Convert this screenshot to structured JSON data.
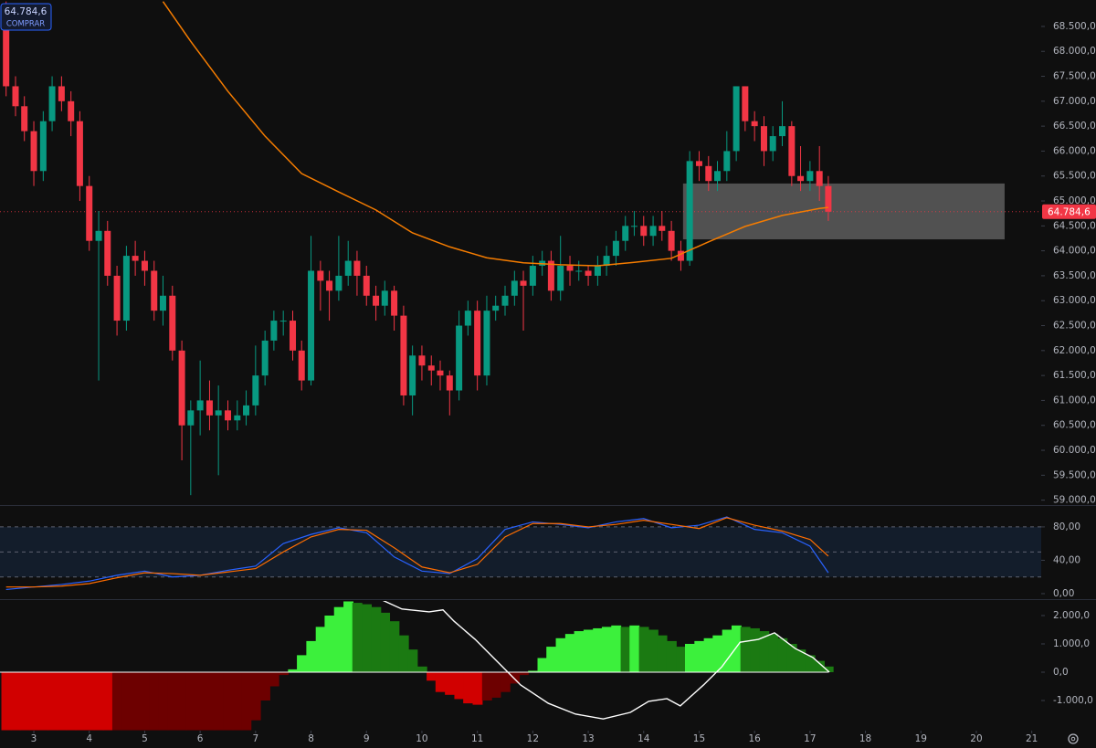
{
  "chart_data": [
    {
      "type": "candlestick",
      "x": [
        2.5,
        2.67,
        2.83,
        3,
        3.17,
        3.33,
        3.5,
        3.67,
        3.83,
        4,
        4.17,
        4.33,
        4.5,
        4.67,
        4.83,
        5,
        5.17,
        5.33,
        5.5,
        5.67,
        5.83,
        6,
        6.17,
        6.33,
        6.5,
        6.67,
        6.83,
        7,
        7.17,
        7.33,
        7.5,
        7.67,
        7.83,
        8,
        8.17,
        8.33,
        8.5,
        8.67,
        8.83,
        9,
        9.17,
        9.33,
        9.5,
        9.67,
        9.83,
        10,
        10.17,
        10.33,
        10.5,
        10.67,
        10.83,
        11,
        11.17,
        11.33,
        11.5,
        11.67,
        11.83,
        12,
        12.17,
        12.33,
        12.5,
        12.67,
        12.83,
        13,
        13.17,
        13.33,
        13.5,
        13.67,
        13.83,
        14,
        14.17,
        14.33,
        14.5,
        14.67,
        14.83,
        15,
        15.17,
        15.33,
        15.5,
        15.67,
        15.83,
        16,
        16.17,
        16.33,
        16.5,
        16.67,
        16.83,
        17,
        17.17,
        17.33
      ],
      "open": [
        68800,
        67300,
        66900,
        66400,
        65600,
        66600,
        67300,
        67000,
        66600,
        65300,
        64200,
        64400,
        63500,
        62600,
        63900,
        63800,
        63600,
        62800,
        63100,
        62000,
        60500,
        60800,
        61000,
        60700,
        60800,
        60600,
        60700,
        60900,
        61500,
        62200,
        62600,
        62600,
        62000,
        61400,
        63600,
        63400,
        63200,
        63500,
        63800,
        63500,
        63100,
        62900,
        63200,
        62700,
        61100,
        61900,
        61700,
        61600,
        61500,
        61200,
        62500,
        62800,
        61500,
        62800,
        62900,
        63100,
        63400,
        63300,
        63700,
        63800,
        63200,
        63700,
        63600,
        63600,
        63500,
        63700,
        63900,
        64200,
        64500,
        64500,
        64300,
        64500,
        64400,
        64000,
        63800,
        65800,
        65700,
        65400,
        65600,
        66000,
        67300,
        66600,
        66500,
        66000,
        66300,
        66500,
        65500,
        65400,
        65600,
        65300
      ],
      "high": [
        69000,
        67500,
        67100,
        66600,
        66800,
        67500,
        67500,
        67200,
        66800,
        65500,
        64800,
        64600,
        63700,
        64100,
        64200,
        64000,
        63800,
        63500,
        63300,
        62200,
        61000,
        61800,
        61400,
        61300,
        61000,
        61000,
        61200,
        62100,
        62400,
        62800,
        62800,
        62800,
        62200,
        64300,
        63800,
        63600,
        64300,
        64200,
        64000,
        63700,
        63300,
        63400,
        63300,
        62900,
        62100,
        62100,
        61900,
        61800,
        61600,
        62800,
        63000,
        63000,
        63100,
        63100,
        63300,
        63600,
        63600,
        63900,
        64000,
        64000,
        64300,
        63900,
        63800,
        63700,
        63900,
        64100,
        64400,
        64700,
        64800,
        64700,
        64700,
        64800,
        64600,
        64200,
        66000,
        66000,
        65900,
        65800,
        66400,
        67300,
        67300,
        66800,
        66700,
        66500,
        67000,
        66600,
        66100,
        65800,
        66100,
        65500
      ],
      "low": [
        67100,
        66700,
        66200,
        65300,
        65400,
        66400,
        66800,
        66300,
        65000,
        64000,
        61400,
        63300,
        62300,
        62400,
        63500,
        63300,
        62600,
        62500,
        61800,
        59800,
        59100,
        60300,
        60400,
        59500,
        60400,
        60400,
        60500,
        60700,
        61300,
        62000,
        62300,
        61800,
        61200,
        61300,
        62800,
        62600,
        63000,
        63300,
        63100,
        62900,
        62600,
        62700,
        62400,
        60900,
        60700,
        61400,
        61300,
        61200,
        60700,
        61000,
        62300,
        61200,
        61300,
        62600,
        62700,
        62900,
        62400,
        63100,
        63500,
        63000,
        63000,
        63300,
        63400,
        63300,
        63300,
        63500,
        63700,
        64000,
        64300,
        64100,
        64100,
        64200,
        63800,
        63600,
        63700,
        65400,
        65200,
        65200,
        65400,
        65800,
        66400,
        66200,
        65700,
        65800,
        66100,
        65300,
        65200,
        65200,
        65000,
        64600
      ],
      "close": [
        67300,
        66900,
        66400,
        65600,
        66600,
        67300,
        67000,
        66600,
        65300,
        64200,
        64400,
        63500,
        62600,
        63900,
        63800,
        63600,
        62800,
        63100,
        62000,
        60500,
        60800,
        61000,
        60700,
        60800,
        60600,
        60700,
        60900,
        61500,
        62200,
        62600,
        62600,
        62000,
        61400,
        63600,
        63400,
        63200,
        63500,
        63800,
        63500,
        63100,
        62900,
        63200,
        62700,
        61100,
        61900,
        61700,
        61600,
        61500,
        61200,
        62500,
        62800,
        61500,
        62800,
        62900,
        63100,
        63400,
        63300,
        63700,
        63800,
        63200,
        63700,
        63600,
        63600,
        63500,
        63700,
        63900,
        64200,
        64500,
        64500,
        64300,
        64500,
        64400,
        64000,
        63800,
        65800,
        65700,
        65400,
        65600,
        66000,
        67300,
        66600,
        66500,
        66000,
        66300,
        66500,
        65500,
        65400,
        65600,
        65300,
        64784.6
      ],
      "up_color": "#089981",
      "down_color": "#f23645",
      "ema": {
        "color": "#f57c00",
        "x": [
          5.33,
          5.83,
          6.5,
          7.17,
          7.83,
          8.5,
          9.17,
          9.83,
          10.5,
          11.17,
          11.83,
          12.5,
          13.17,
          13.83,
          14.5,
          15.17,
          15.83,
          16.5,
          17.17,
          17.33
        ],
        "values": [
          69000,
          68200,
          67200,
          66300,
          65550,
          65180,
          64820,
          64360,
          64080,
          63860,
          63760,
          63720,
          63700,
          63770,
          63850,
          64180,
          64490,
          64710,
          64850,
          64870
        ]
      },
      "zone": {
        "x": [
          14.71,
          20.51
        ],
        "y": [
          64230,
          65350
        ],
        "color": "rgba(190,190,190,0.38)"
      },
      "last_price": {
        "value": 64784.6,
        "label": "64.784,6",
        "color": "#f23645"
      },
      "buy_button": {
        "price": "64.784,6",
        "text": "COMPRAR"
      },
      "xlim": [
        2.39,
        21.17
      ],
      "xticks": [
        3,
        4,
        5,
        6,
        7,
        8,
        9,
        10,
        11,
        12,
        13,
        14,
        15,
        16,
        17,
        18,
        19,
        20,
        21
      ],
      "ylim": [
        58920,
        69030
      ],
      "yticks": [
        {
          "value": 59000,
          "label": "59.000,0"
        },
        {
          "value": 59500,
          "label": "59.500,0"
        },
        {
          "value": 60000,
          "label": "60.000,0"
        },
        {
          "value": 60500,
          "label": "60.500,0"
        },
        {
          "value": 61000,
          "label": "61.000,0"
        },
        {
          "value": 61500,
          "label": "61.500,0"
        },
        {
          "value": 62000,
          "label": "62.000,0"
        },
        {
          "value": 62500,
          "label": "62.500,0"
        },
        {
          "value": 63000,
          "label": "63.000,0"
        },
        {
          "value": 63500,
          "label": "63.500,0"
        },
        {
          "value": 64000,
          "label": "64.000,0"
        },
        {
          "value": 64500,
          "label": "64.500,0"
        },
        {
          "value": 65000,
          "label": "65.000,0"
        },
        {
          "value": 65500,
          "label": "65.500,0"
        },
        {
          "value": 66000,
          "label": "66.000,0"
        },
        {
          "value": 66500,
          "label": "66.500,0"
        },
        {
          "value": 67000,
          "label": "67.000,0"
        },
        {
          "value": 67500,
          "label": "67.500,0"
        },
        {
          "value": 68000,
          "label": "68.000,0"
        },
        {
          "value": 68500,
          "label": "68.500,0"
        }
      ]
    },
    {
      "type": "line",
      "x": [
        2.5,
        3,
        3.5,
        4,
        4.5,
        5,
        5.5,
        6,
        6.5,
        7,
        7.5,
        8,
        8.5,
        9,
        9.5,
        10,
        10.5,
        11,
        11.5,
        12,
        12.5,
        13,
        13.5,
        14,
        14.5,
        15,
        15.5,
        16,
        16.5,
        17,
        17.33
      ],
      "series": [
        {
          "color": "#2962ff",
          "values": [
            5,
            8,
            11,
            15,
            22,
            27,
            20,
            22,
            28,
            33,
            60,
            71,
            79,
            73,
            44,
            27,
            24,
            42,
            77,
            86,
            83,
            79,
            86,
            90,
            79,
            82,
            92,
            77,
            73,
            57,
            25
          ]
        },
        {
          "color": "#ff6d00",
          "values": [
            8,
            8,
            9,
            12,
            19,
            25,
            24,
            22,
            26,
            30,
            50,
            68,
            77,
            76,
            55,
            32,
            25,
            35,
            68,
            84,
            84,
            80,
            83,
            88,
            83,
            78,
            91,
            82,
            75,
            65,
            45
          ]
        }
      ],
      "bands": [
        20,
        50,
        80
      ],
      "band_color": "rgba(33,68,120,0.28)",
      "ylim": [
        -5.5,
        104
      ],
      "yticks": [
        {
          "value": 0,
          "label": "0,00"
        },
        {
          "value": 40,
          "label": "40,00"
        },
        {
          "value": 80,
          "label": "80,00"
        }
      ]
    },
    {
      "type": "histogram",
      "x": [
        2.5,
        2.67,
        2.83,
        3,
        3.17,
        3.33,
        3.5,
        3.67,
        3.83,
        4,
        4.17,
        4.33,
        4.5,
        4.67,
        4.83,
        5,
        5.17,
        5.33,
        5.5,
        5.67,
        5.83,
        6,
        6.17,
        6.33,
        6.5,
        6.67,
        6.83,
        7,
        7.17,
        7.33,
        7.5,
        7.67,
        7.83,
        8,
        8.17,
        8.33,
        8.5,
        8.67,
        8.83,
        9,
        9.17,
        9.33,
        9.5,
        9.67,
        9.83,
        10,
        10.17,
        10.33,
        10.5,
        10.67,
        10.83,
        11,
        11.17,
        11.33,
        11.5,
        11.67,
        11.83,
        12,
        12.17,
        12.33,
        12.5,
        12.67,
        12.83,
        13,
        13.17,
        13.33,
        13.5,
        13.67,
        13.83,
        14,
        14.17,
        14.33,
        14.5,
        14.67,
        14.83,
        15,
        15.17,
        15.33,
        15.5,
        15.67,
        15.83,
        16,
        16.17,
        16.33,
        16.5,
        16.67,
        16.83,
        17,
        17.17,
        17.33
      ],
      "values": [
        -2050,
        -2050,
        -2050,
        -2050,
        -2050,
        -2050,
        -2050,
        -2050,
        -2050,
        -2050,
        -2050,
        -2050,
        -2050,
        -2050,
        -2050,
        -2050,
        -2050,
        -2050,
        -2050,
        -2050,
        -2050,
        -2050,
        -2050,
        -2050,
        -2050,
        -2050,
        -2050,
        -1700,
        -1000,
        -500,
        -100,
        100,
        600,
        1100,
        1600,
        2000,
        2300,
        2500,
        2450,
        2400,
        2300,
        2100,
        1800,
        1300,
        800,
        200,
        -300,
        -700,
        -800,
        -950,
        -1100,
        -1150,
        -1000,
        -900,
        -700,
        -400,
        -100,
        50,
        500,
        900,
        1200,
        1350,
        1450,
        1500,
        1550,
        1600,
        1650,
        1600,
        1650,
        1600,
        1500,
        1300,
        1100,
        900,
        1000,
        1100,
        1200,
        1300,
        1500,
        1650,
        1600,
        1550,
        1450,
        1350,
        1200,
        1000,
        800,
        600,
        400,
        200
      ],
      "colors": [
        "#d10000",
        "#d10000",
        "#d10000",
        "#d10000",
        "#d10000",
        "#d10000",
        "#d10000",
        "#d10000",
        "#d10000",
        "#d10000",
        "#d10000",
        "#d10000",
        "#6d0000",
        "#6d0000",
        "#6d0000",
        "#6d0000",
        "#6d0000",
        "#6d0000",
        "#6d0000",
        "#6d0000",
        "#6d0000",
        "#6d0000",
        "#6d0000",
        "#6d0000",
        "#6d0000",
        "#6d0000",
        "#6d0000",
        "#6d0000",
        "#6d0000",
        "#6d0000",
        "#6d0000",
        "#3cf03c",
        "#3cf03c",
        "#3cf03c",
        "#3cf03c",
        "#3cf03c",
        "#3cf03c",
        "#3cf03c",
        "#1b7a12",
        "#1b7a12",
        "#1b7a12",
        "#1b7a12",
        "#1b7a12",
        "#1b7a12",
        "#1b7a12",
        "#1b7a12",
        "#d10000",
        "#d10000",
        "#d10000",
        "#d10000",
        "#d10000",
        "#d10000",
        "#6d0000",
        "#6d0000",
        "#6d0000",
        "#6d0000",
        "#6d0000",
        "#3cf03c",
        "#3cf03c",
        "#3cf03c",
        "#3cf03c",
        "#3cf03c",
        "#3cf03c",
        "#3cf03c",
        "#3cf03c",
        "#3cf03c",
        "#3cf03c",
        "#1b7a12",
        "#3cf03c",
        "#1b7a12",
        "#1b7a12",
        "#1b7a12",
        "#1b7a12",
        "#1b7a12",
        "#3cf03c",
        "#3cf03c",
        "#3cf03c",
        "#3cf03c",
        "#3cf03c",
        "#3cf03c",
        "#1b7a12",
        "#1b7a12",
        "#1b7a12",
        "#1b7a12",
        "#1b7a12",
        "#1b7a12",
        "#1b7a12",
        "#1b7a12",
        "#1b7a12",
        "#1b7a12"
      ],
      "signal": {
        "color": "#ffffff",
        "x": [
          9.28,
          9.64,
          10.13,
          10.38,
          10.58,
          10.96,
          11.37,
          11.78,
          12.28,
          12.77,
          13.27,
          13.76,
          14.09,
          14.42,
          14.66,
          15.08,
          15.41,
          15.74,
          16.07,
          16.36,
          16.73,
          17.05,
          17.35
        ],
        "values": [
          2550,
          2230,
          2130,
          2200,
          1800,
          1160,
          355,
          -450,
          -1100,
          -1480,
          -1650,
          -1420,
          -1030,
          -935,
          -1190,
          -450,
          190,
          1060,
          1160,
          1390,
          840,
          520,
          0
        ]
      },
      "ylim": [
        -2065,
        2516
      ],
      "yticks": [
        {
          "value": -1000,
          "label": "-1.000,0"
        },
        {
          "value": 0,
          "label": "0,0"
        },
        {
          "value": 1000,
          "label": "1.000,0"
        },
        {
          "value": 2000,
          "label": "2.000,0"
        }
      ]
    }
  ]
}
